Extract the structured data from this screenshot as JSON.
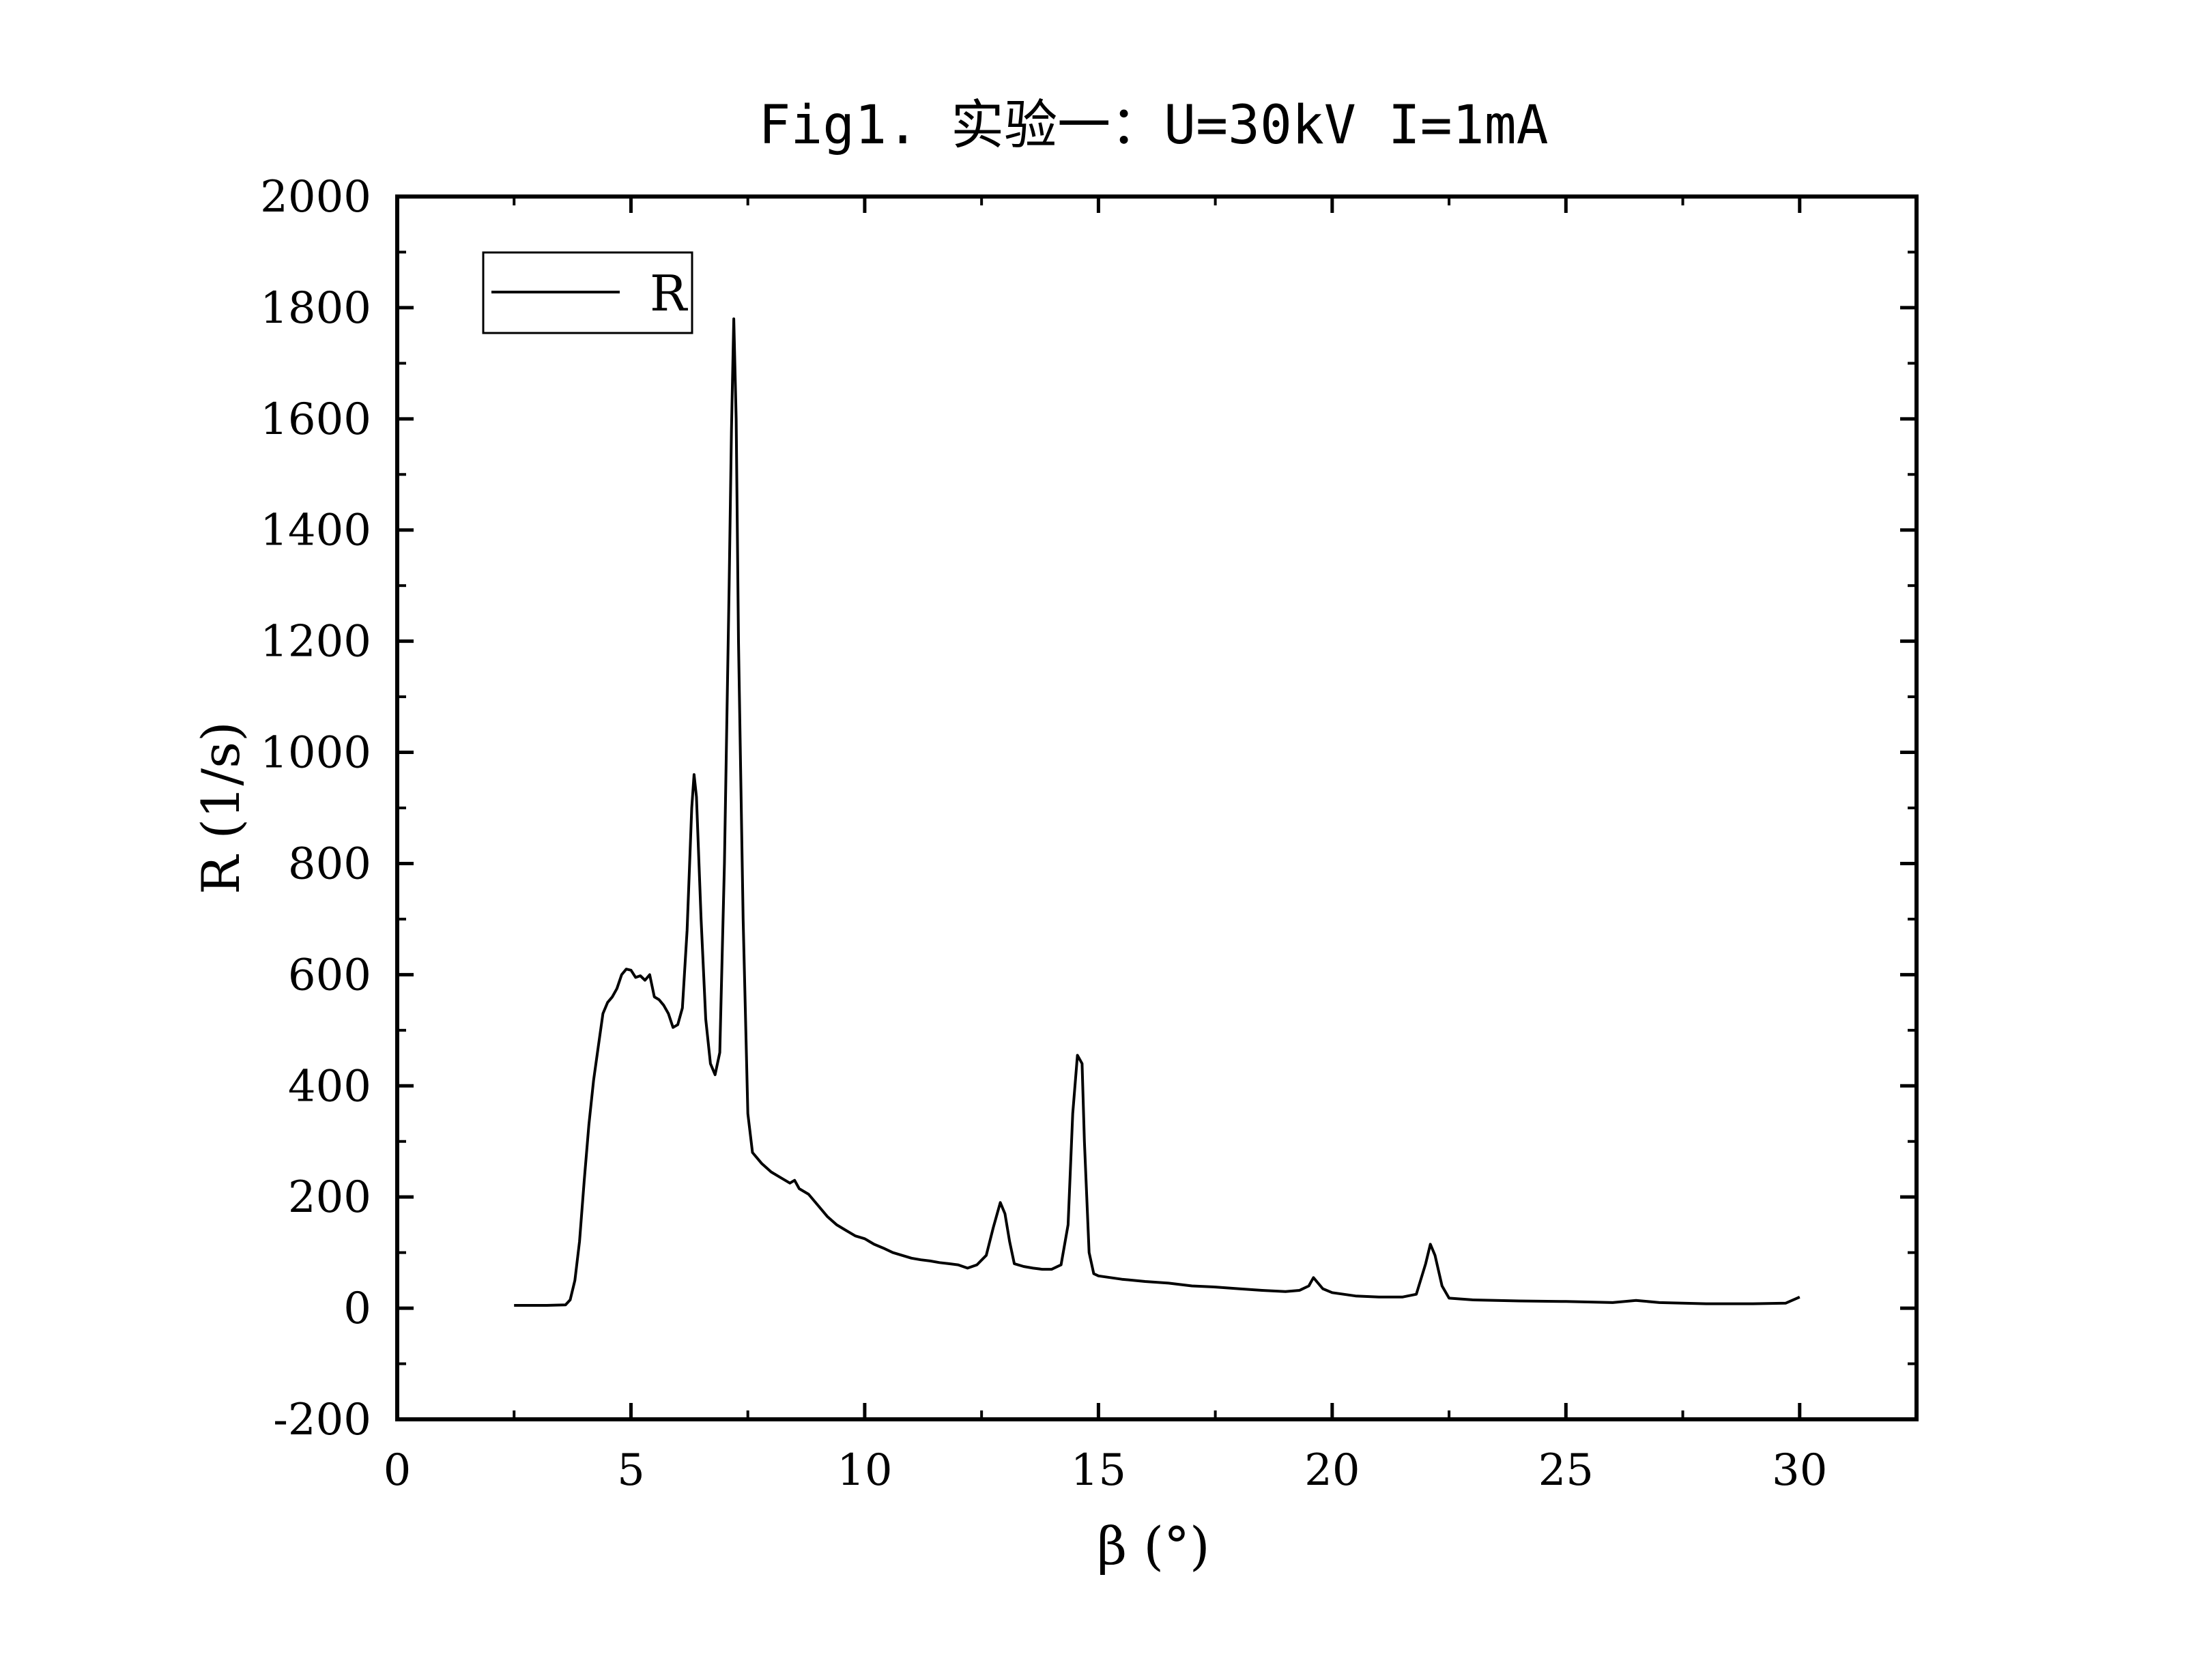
{
  "chart_data": {
    "type": "line",
    "title": "Fig1. 实验一：U=30kV I=1mA",
    "xlabel": "β (°)",
    "ylabel": "R (1/s)",
    "xlim": [
      0,
      32.5
    ],
    "ylim": [
      -200,
      2000
    ],
    "x_ticks": [
      "0",
      "5",
      "10",
      "15",
      "20",
      "25",
      "30"
    ],
    "y_ticks": [
      "-200",
      "0",
      "200",
      "400",
      "600",
      "800",
      "1000",
      "1200",
      "1400",
      "1600",
      "1800",
      "2000"
    ],
    "grid": false,
    "legend": {
      "position": "top-left",
      "entries": [
        "R"
      ]
    },
    "series": [
      {
        "name": "R",
        "color": "#000000",
        "points": [
          [
            2.5,
            5
          ],
          [
            2.8,
            5
          ],
          [
            3.2,
            5
          ],
          [
            3.6,
            6
          ],
          [
            3.7,
            15
          ],
          [
            3.8,
            50
          ],
          [
            3.9,
            120
          ],
          [
            4.0,
            230
          ],
          [
            4.1,
            330
          ],
          [
            4.2,
            410
          ],
          [
            4.3,
            470
          ],
          [
            4.4,
            530
          ],
          [
            4.5,
            550
          ],
          [
            4.6,
            560
          ],
          [
            4.7,
            575
          ],
          [
            4.8,
            600
          ],
          [
            4.9,
            610
          ],
          [
            5.0,
            608
          ],
          [
            5.1,
            595
          ],
          [
            5.2,
            598
          ],
          [
            5.3,
            590
          ],
          [
            5.4,
            600
          ],
          [
            5.5,
            560
          ],
          [
            5.6,
            555
          ],
          [
            5.7,
            545
          ],
          [
            5.8,
            530
          ],
          [
            5.9,
            505
          ],
          [
            6.0,
            510
          ],
          [
            6.1,
            540
          ],
          [
            6.2,
            680
          ],
          [
            6.3,
            900
          ],
          [
            6.35,
            960
          ],
          [
            6.4,
            920
          ],
          [
            6.5,
            700
          ],
          [
            6.6,
            520
          ],
          [
            6.7,
            440
          ],
          [
            6.8,
            420
          ],
          [
            6.9,
            460
          ],
          [
            7.0,
            800
          ],
          [
            7.1,
            1300
          ],
          [
            7.15,
            1580
          ],
          [
            7.2,
            1780
          ],
          [
            7.25,
            1600
          ],
          [
            7.3,
            1200
          ],
          [
            7.4,
            700
          ],
          [
            7.5,
            350
          ],
          [
            7.6,
            280
          ],
          [
            7.7,
            270
          ],
          [
            7.8,
            260
          ],
          [
            8.0,
            245
          ],
          [
            8.2,
            235
          ],
          [
            8.4,
            225
          ],
          [
            8.5,
            230
          ],
          [
            8.6,
            215
          ],
          [
            8.8,
            205
          ],
          [
            9.0,
            185
          ],
          [
            9.2,
            165
          ],
          [
            9.4,
            150
          ],
          [
            9.6,
            140
          ],
          [
            9.8,
            130
          ],
          [
            10.0,
            125
          ],
          [
            10.2,
            115
          ],
          [
            10.4,
            108
          ],
          [
            10.6,
            100
          ],
          [
            10.8,
            95
          ],
          [
            11.0,
            90
          ],
          [
            11.2,
            87
          ],
          [
            11.4,
            85
          ],
          [
            11.6,
            82
          ],
          [
            11.8,
            80
          ],
          [
            12.0,
            78
          ],
          [
            12.2,
            72
          ],
          [
            12.4,
            78
          ],
          [
            12.6,
            95
          ],
          [
            12.75,
            145
          ],
          [
            12.9,
            190
          ],
          [
            13.0,
            170
          ],
          [
            13.1,
            120
          ],
          [
            13.2,
            80
          ],
          [
            13.4,
            75
          ],
          [
            13.6,
            72
          ],
          [
            13.8,
            70
          ],
          [
            14.0,
            70
          ],
          [
            14.2,
            78
          ],
          [
            14.35,
            150
          ],
          [
            14.45,
            350
          ],
          [
            14.55,
            455
          ],
          [
            14.65,
            440
          ],
          [
            14.7,
            300
          ],
          [
            14.8,
            100
          ],
          [
            14.9,
            62
          ],
          [
            15.0,
            58
          ],
          [
            15.5,
            52
          ],
          [
            16.0,
            48
          ],
          [
            16.5,
            45
          ],
          [
            17.0,
            40
          ],
          [
            17.5,
            38
          ],
          [
            18.0,
            35
          ],
          [
            18.5,
            32
          ],
          [
            19.0,
            30
          ],
          [
            19.3,
            32
          ],
          [
            19.5,
            40
          ],
          [
            19.6,
            55
          ],
          [
            19.8,
            35
          ],
          [
            20.0,
            28
          ],
          [
            20.5,
            22
          ],
          [
            21.0,
            20
          ],
          [
            21.5,
            20
          ],
          [
            21.8,
            25
          ],
          [
            22.0,
            80
          ],
          [
            22.1,
            115
          ],
          [
            22.2,
            95
          ],
          [
            22.35,
            40
          ],
          [
            22.5,
            18
          ],
          [
            23.0,
            15
          ],
          [
            24.0,
            13
          ],
          [
            25.0,
            12
          ],
          [
            26.0,
            10
          ],
          [
            26.5,
            14
          ],
          [
            27.0,
            10
          ],
          [
            28.0,
            8
          ],
          [
            29.0,
            8
          ],
          [
            29.7,
            9
          ],
          [
            30.0,
            20
          ]
        ]
      }
    ]
  }
}
